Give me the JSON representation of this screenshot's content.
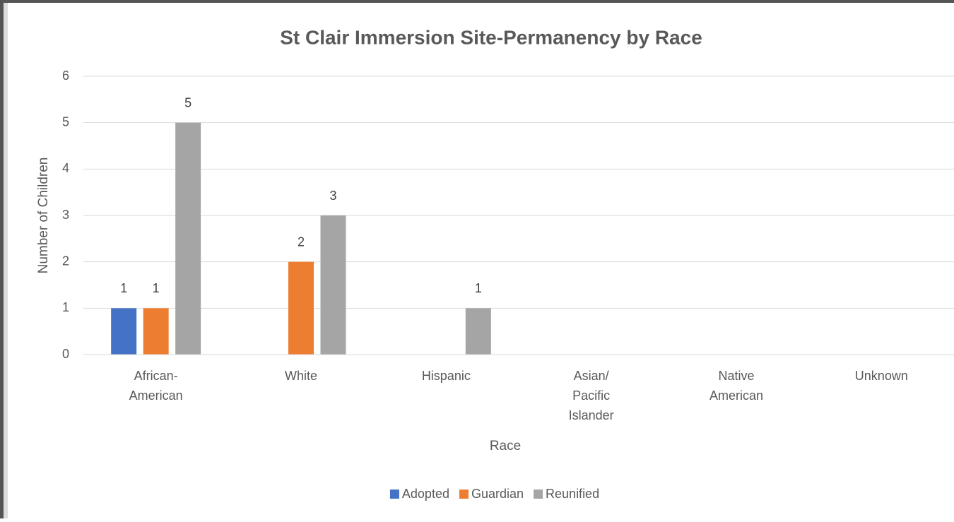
{
  "chart_data": {
    "type": "bar",
    "title": "St Clair Immersion Site-Permanency by Race",
    "x_label": "Race",
    "y_label": "Number of Children",
    "categories": [
      "African-American",
      "White",
      "Hispanic",
      "Asian/ Pacific Islander",
      "Native American",
      "Unknown"
    ],
    "series": [
      {
        "name": "Adopted",
        "color": "#4472c4",
        "values": [
          1,
          0,
          0,
          0,
          0,
          0
        ]
      },
      {
        "name": "Guardian",
        "color": "#ed7d31",
        "values": [
          1,
          2,
          0,
          0,
          0,
          0
        ]
      },
      {
        "name": "Reunified",
        "color": "#a5a5a5",
        "values": [
          5,
          3,
          1,
          0,
          0,
          0
        ]
      }
    ],
    "ylim": [
      0,
      6
    ],
    "yticks": [
      0,
      1,
      2,
      3,
      4,
      5,
      6
    ],
    "grid": true,
    "legend": "bottom"
  }
}
